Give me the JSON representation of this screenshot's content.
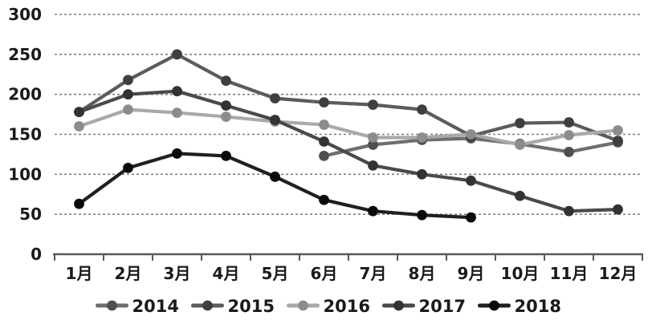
{
  "chart_data": {
    "type": "line",
    "title": "",
    "xlabel": "",
    "ylabel": "",
    "categories": [
      "1月",
      "2月",
      "3月",
      "4月",
      "5月",
      "6月",
      "7月",
      "8月",
      "9月",
      "10月",
      "11月",
      "12月"
    ],
    "ylim": [
      0,
      300
    ],
    "yticks": [
      0,
      50,
      100,
      150,
      200,
      250,
      300
    ],
    "grid": "horizontal-dashed",
    "legend_position": "bottom",
    "series": [
      {
        "name": "2014",
        "line_color": "#6e6e6e",
        "marker_color": "#4f4f4f",
        "values": [
          null,
          null,
          null,
          null,
          null,
          123,
          137,
          143,
          145,
          138,
          128,
          140
        ]
      },
      {
        "name": "2015",
        "line_color": "#5c5c5c",
        "marker_color": "#3f3f3f",
        "values": [
          178,
          218,
          250,
          217,
          195,
          190,
          187,
          181,
          148,
          164,
          165,
          142
        ]
      },
      {
        "name": "2016",
        "line_color": "#a9a9a9",
        "marker_color": "#8c8c8c",
        "values": [
          160,
          181,
          177,
          172,
          166,
          162,
          146,
          146,
          150,
          137,
          149,
          155
        ]
      },
      {
        "name": "2017",
        "line_color": "#4a4a4a",
        "marker_color": "#333333",
        "values": [
          178,
          200,
          204,
          186,
          168,
          141,
          111,
          100,
          92,
          73,
          54,
          56
        ]
      },
      {
        "name": "2018",
        "line_color": "#1f1f1f",
        "marker_color": "#0a0a0a",
        "values": [
          63,
          108,
          126,
          123,
          97,
          68,
          54,
          49,
          46,
          null,
          null,
          null
        ]
      }
    ],
    "axis_color": "#595959",
    "gridline_color": "#7f7f7f",
    "tick_label_color": "#1a1a1a"
  }
}
